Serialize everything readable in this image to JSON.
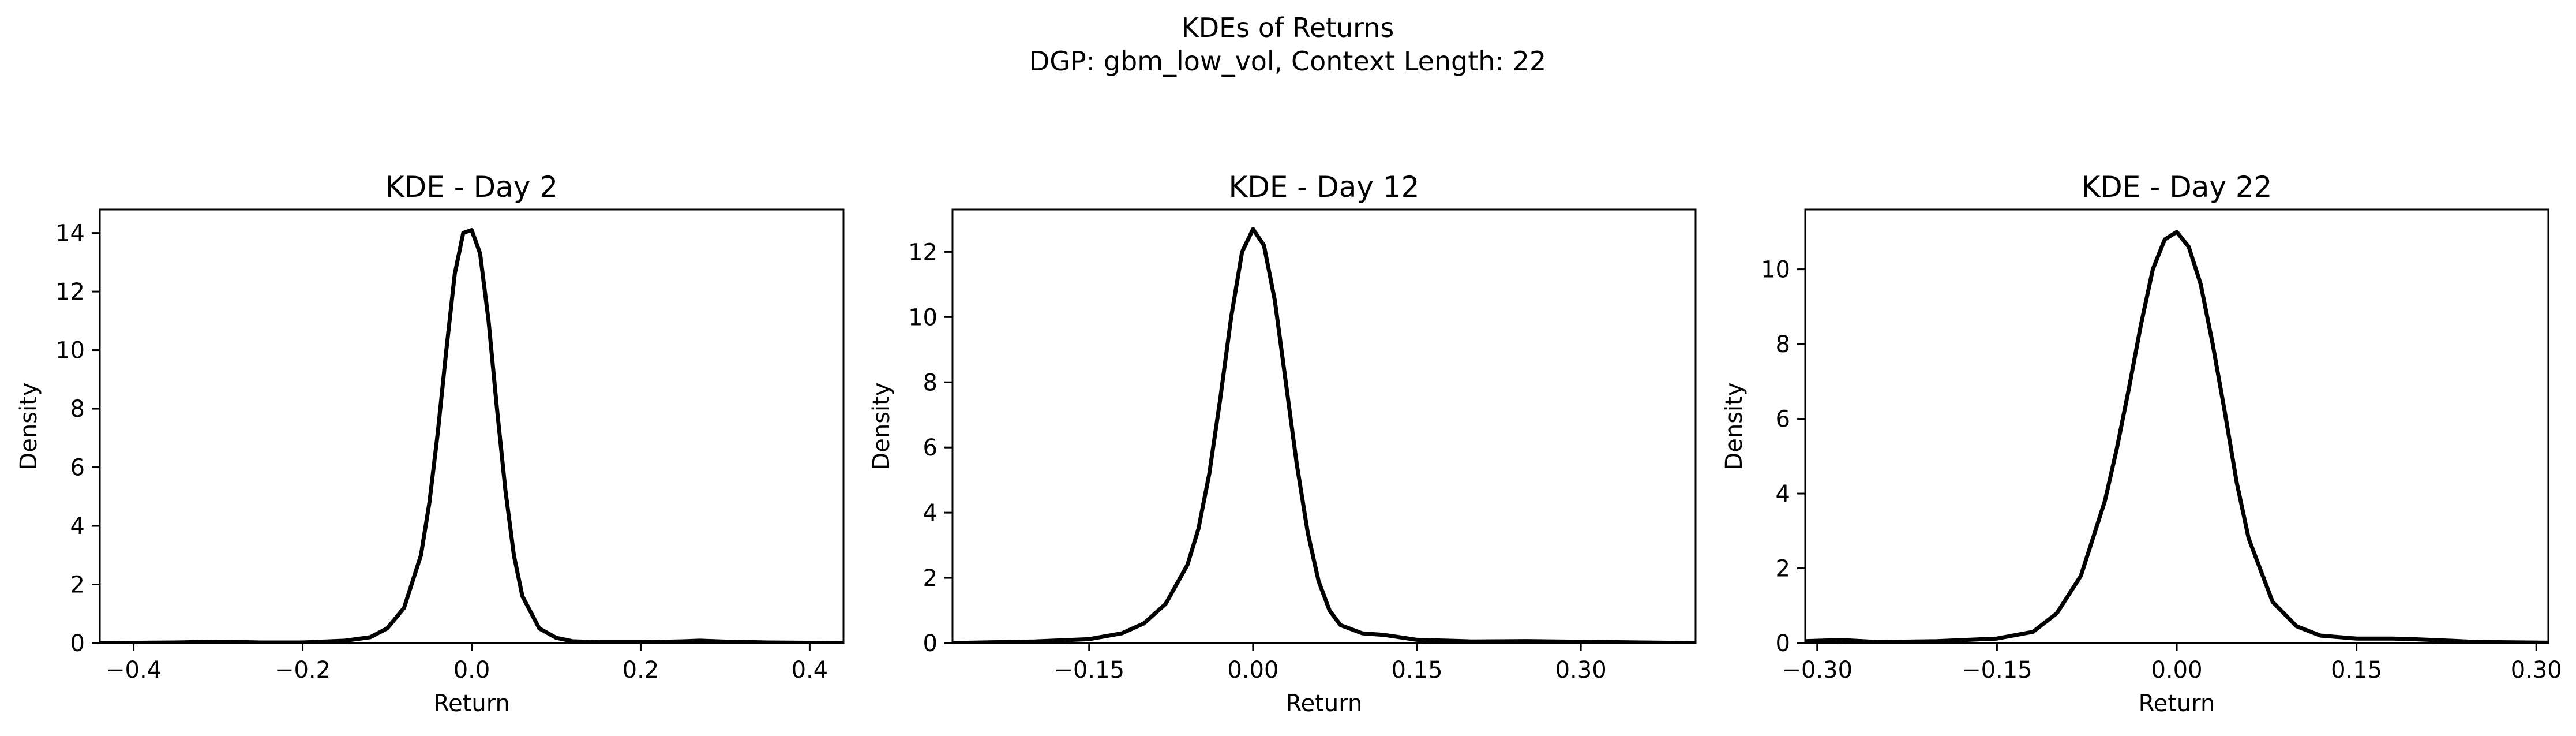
{
  "figure": {
    "suptitle_line1": "KDEs of Returns",
    "suptitle_line2": "DGP: gbm_low_vol, Context Length: 22",
    "line_color": "#000000"
  },
  "chart_data": [
    {
      "type": "line",
      "title": "KDE - Day 2",
      "xlabel": "Return",
      "ylabel": "Density",
      "xlim": [
        -0.44,
        0.44
      ],
      "ylim": [
        0,
        14.8
      ],
      "xticks": [
        -0.4,
        -0.2,
        0.0,
        0.2,
        0.4
      ],
      "xtick_labels": [
        "−0.4",
        "−0.2",
        "0.0",
        "0.2",
        "0.4"
      ],
      "yticks": [
        0,
        2,
        4,
        6,
        8,
        10,
        12,
        14
      ],
      "ytick_labels": [
        "0",
        "2",
        "4",
        "6",
        "8",
        "10",
        "12",
        "14"
      ],
      "grid": false,
      "series": [
        {
          "x": [
            -0.44,
            -0.35,
            -0.3,
            -0.25,
            -0.2,
            -0.15,
            -0.12,
            -0.1,
            -0.08,
            -0.06,
            -0.05,
            -0.04,
            -0.03,
            -0.02,
            -0.01,
            0.0,
            0.01,
            0.02,
            0.03,
            0.04,
            0.05,
            0.06,
            0.08,
            0.1,
            0.12,
            0.15,
            0.2,
            0.25,
            0.27,
            0.3,
            0.35,
            0.44
          ],
          "y": [
            0.0,
            0.02,
            0.05,
            0.02,
            0.02,
            0.08,
            0.2,
            0.5,
            1.2,
            3.0,
            4.8,
            7.2,
            10.0,
            12.6,
            14.0,
            14.1,
            13.3,
            11.0,
            8.0,
            5.2,
            3.0,
            1.6,
            0.5,
            0.18,
            0.06,
            0.03,
            0.03,
            0.06,
            0.08,
            0.05,
            0.02,
            0.0
          ]
        }
      ]
    },
    {
      "type": "line",
      "title": "KDE - Day 12",
      "xlabel": "Return",
      "ylabel": "Density",
      "xlim": [
        -0.275,
        0.405
      ],
      "ylim": [
        0,
        13.3
      ],
      "xticks": [
        -0.15,
        0.0,
        0.15,
        0.3
      ],
      "xtick_labels": [
        "−0.15",
        "0.00",
        "0.15",
        "0.30"
      ],
      "yticks": [
        0,
        2,
        4,
        6,
        8,
        10,
        12
      ],
      "ytick_labels": [
        "0",
        "2",
        "4",
        "6",
        "8",
        "10",
        "12"
      ],
      "grid": false,
      "series": [
        {
          "x": [
            -0.275,
            -0.2,
            -0.15,
            -0.12,
            -0.1,
            -0.08,
            -0.06,
            -0.05,
            -0.04,
            -0.03,
            -0.02,
            -0.01,
            0.0,
            0.01,
            0.02,
            0.03,
            0.04,
            0.05,
            0.06,
            0.07,
            0.08,
            0.1,
            0.12,
            0.15,
            0.2,
            0.25,
            0.3,
            0.35,
            0.405
          ],
          "y": [
            0.0,
            0.05,
            0.12,
            0.3,
            0.6,
            1.2,
            2.4,
            3.5,
            5.2,
            7.5,
            10.0,
            12.0,
            12.7,
            12.2,
            10.5,
            8.0,
            5.5,
            3.4,
            1.9,
            1.0,
            0.55,
            0.3,
            0.25,
            0.1,
            0.05,
            0.06,
            0.04,
            0.02,
            0.0
          ]
        }
      ]
    },
    {
      "type": "line",
      "title": "KDE - Day 22",
      "xlabel": "Return",
      "ylabel": "Density",
      "xlim": [
        -0.31,
        0.31
      ],
      "ylim": [
        0,
        11.6
      ],
      "xticks": [
        -0.3,
        -0.15,
        0.0,
        0.15,
        0.3
      ],
      "xtick_labels": [
        "−0.30",
        "−0.15",
        "0.00",
        "0.15",
        "0.30"
      ],
      "yticks": [
        0,
        2,
        4,
        6,
        8,
        10
      ],
      "ytick_labels": [
        "0",
        "2",
        "4",
        "6",
        "8",
        "10"
      ],
      "grid": false,
      "series": [
        {
          "x": [
            -0.31,
            -0.28,
            -0.25,
            -0.2,
            -0.15,
            -0.12,
            -0.1,
            -0.08,
            -0.06,
            -0.05,
            -0.04,
            -0.03,
            -0.02,
            -0.01,
            0.0,
            0.01,
            0.02,
            0.03,
            0.04,
            0.05,
            0.06,
            0.08,
            0.1,
            0.12,
            0.15,
            0.18,
            0.2,
            0.23,
            0.25,
            0.28,
            0.31
          ],
          "y": [
            0.05,
            0.08,
            0.03,
            0.05,
            0.12,
            0.3,
            0.8,
            1.8,
            3.8,
            5.2,
            6.8,
            8.5,
            10.0,
            10.8,
            11.0,
            10.6,
            9.6,
            8.0,
            6.2,
            4.3,
            2.8,
            1.1,
            0.45,
            0.2,
            0.12,
            0.12,
            0.1,
            0.06,
            0.03,
            0.02,
            0.01
          ]
        }
      ]
    }
  ]
}
